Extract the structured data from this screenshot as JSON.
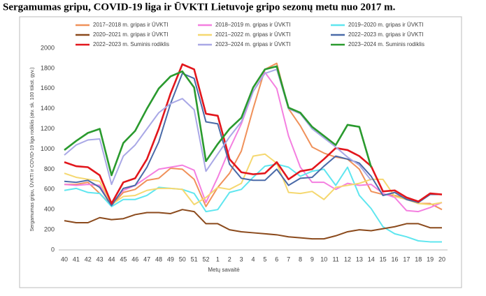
{
  "chart_data": {
    "type": "line",
    "title": "Sergamumas gripu, COVID-19 liga ir ŪVKTI Lietuvoje gripo sezonų metu nuo 2017 m.",
    "y_label": "Sergamumas gripu, ŪVKTI ir COVID-19 liga rodiklis (atv. sk. 100 tūkst. gyv.)",
    "x_label": "Metų savaitė",
    "categories": [
      40,
      41,
      42,
      43,
      44,
      45,
      46,
      47,
      48,
      49,
      50,
      51,
      52,
      1,
      2,
      3,
      4,
      5,
      6,
      7,
      8,
      9,
      10,
      11,
      12,
      13,
      14,
      15,
      16,
      17,
      18,
      19,
      20
    ],
    "ylim": [
      0,
      2000
    ],
    "yticks": [
      0,
      200,
      400,
      600,
      800,
      1000,
      1200,
      1400,
      1600,
      1800,
      2000
    ],
    "grid": false,
    "series": [
      {
        "name": "2017–2018 m. gripas ir ŪVKTI",
        "color": "#f0915a",
        "values": [
          650,
          650,
          670,
          560,
          440,
          570,
          600,
          690,
          710,
          810,
          800,
          700,
          430,
          620,
          760,
          980,
          1400,
          1790,
          1850,
          1400,
          1230,
          1020,
          960,
          920,
          900,
          800,
          580,
          550,
          540,
          510,
          460,
          460,
          400
        ]
      },
      {
        "name": "2018–2019 m. gripas ir ŪVKTI",
        "color": "#f47fe0",
        "values": [
          650,
          640,
          650,
          640,
          460,
          590,
          640,
          720,
          800,
          820,
          840,
          790,
          470,
          720,
          1000,
          1250,
          1570,
          1760,
          1600,
          1130,
          820,
          670,
          670,
          600,
          660,
          640,
          650,
          560,
          520,
          390,
          380,
          420,
          470
        ]
      },
      {
        "name": "2019–2020 m. gripas ir ŪVKTI",
        "color": "#5fe6ef",
        "values": [
          590,
          610,
          570,
          560,
          430,
          500,
          500,
          540,
          620,
          610,
          600,
          560,
          380,
          400,
          570,
          600,
          720,
          830,
          850,
          820,
          730,
          780,
          800,
          640,
          820,
          540,
          410,
          230,
          160,
          130,
          90,
          80,
          80
        ]
      },
      {
        "name": "2020–2021 m. gripas ir ŪVKTI",
        "color": "#8b4a1c",
        "values": [
          290,
          270,
          270,
          320,
          300,
          310,
          350,
          370,
          370,
          360,
          400,
          380,
          260,
          260,
          200,
          180,
          170,
          160,
          150,
          130,
          120,
          110,
          110,
          140,
          180,
          200,
          190,
          210,
          230,
          260,
          260,
          220,
          220
        ]
      },
      {
        "name": "2021–2022 m. gripas ir ŪVKTI",
        "color": "#f5d870",
        "values": [
          760,
          720,
          700,
          680,
          450,
          530,
          540,
          590,
          610,
          610,
          600,
          450,
          520,
          620,
          600,
          660,
          930,
          950,
          860,
          570,
          560,
          580,
          500,
          620,
          640,
          660,
          700,
          700,
          530,
          500,
          460,
          450,
          470
        ]
      },
      {
        "name": "2022–2023 m. gripas ir ŪVKTI",
        "color": "#4a6aa8",
        "values": [
          680,
          670,
          690,
          620,
          440,
          610,
          640,
          820,
          1070,
          1450,
          1750,
          1700,
          1270,
          1250,
          850,
          710,
          690,
          690,
          800,
          640,
          710,
          720,
          830,
          930,
          900,
          860,
          730,
          540,
          570,
          500,
          470,
          550,
          550
        ]
      },
      {
        "name": "2022–2023 m. Suminis rodiklis",
        "color": "#e2161c",
        "values": [
          870,
          830,
          820,
          740,
          460,
          670,
          710,
          900,
          1200,
          1550,
          1840,
          1790,
          1350,
          1330,
          900,
          770,
          750,
          760,
          870,
          700,
          780,
          800,
          900,
          1010,
          990,
          930,
          830,
          580,
          590,
          520,
          480,
          560,
          550
        ]
      },
      {
        "name": "2023–2024 m. gripas ir ŪVKTI",
        "color": "#a9a8e6",
        "values": [
          940,
          1040,
          1090,
          1100,
          650,
          930,
          1040,
          1200,
          1360,
          1450,
          1500,
          1390,
          780,
          950,
          1120,
          1270,
          1570,
          1750,
          1790,
          1400,
          1350,
          1200,
          1110,
          1020,
          920,
          840,
          690,
          null,
          null,
          null,
          null,
          null,
          null
        ]
      },
      {
        "name": "2023–2024 m. Suminis rodiklis",
        "color": "#2a9a2e",
        "values": [
          990,
          1080,
          1160,
          1200,
          740,
          1060,
          1180,
          1400,
          1600,
          1720,
          1770,
          1610,
          880,
          1050,
          1200,
          1310,
          1610,
          1790,
          1820,
          1410,
          1360,
          1220,
          1130,
          1040,
          1240,
          1220,
          820,
          null,
          null,
          null,
          null,
          null,
          null
        ]
      }
    ]
  }
}
